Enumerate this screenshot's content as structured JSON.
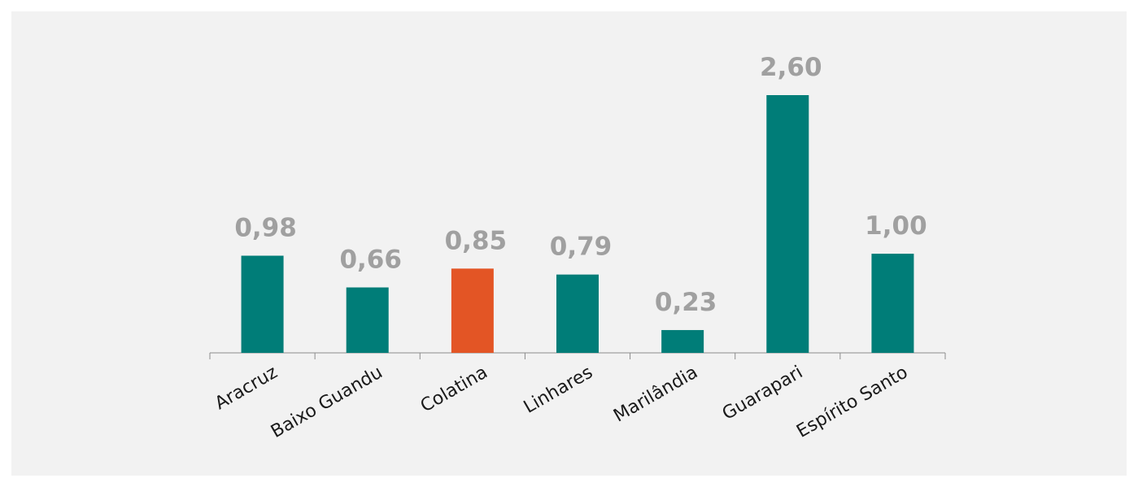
{
  "chart_data": {
    "type": "bar",
    "categories": [
      "Aracruz",
      "Baixo Guandu",
      "Colatina",
      "Linhares",
      "Marilândia",
      "Guarapari",
      "Espírito Santo"
    ],
    "values": [
      0.98,
      0.66,
      0.85,
      0.79,
      0.23,
      2.6,
      1.0
    ],
    "value_labels": [
      "0,98",
      "0,66",
      "0,85",
      "0,79",
      "0,23",
      "2,60",
      "1,00"
    ],
    "colors": [
      "#007d78",
      "#007d78",
      "#e35525",
      "#007d78",
      "#007d78",
      "#007d78",
      "#007d78"
    ]
  }
}
